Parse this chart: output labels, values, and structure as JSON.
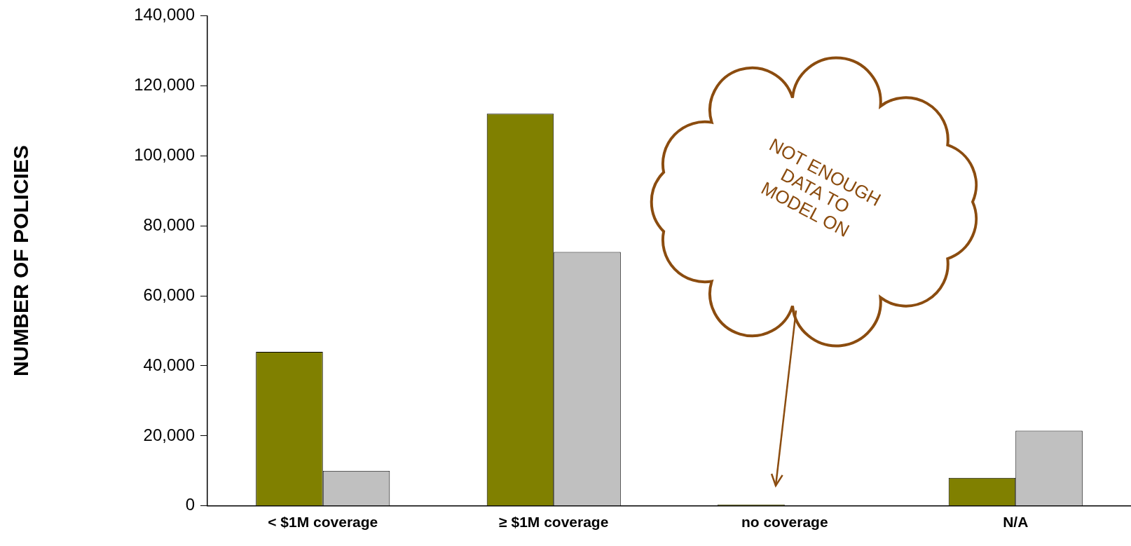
{
  "chart_data": {
    "type": "bar",
    "ylabel": "NUMBER OF POLICIES",
    "categories": [
      "< $1M coverage",
      "≥ $1M coverage",
      "no coverage",
      "N/A"
    ],
    "series": [
      {
        "color": "#808000",
        "values": [
          44000,
          112000,
          400,
          8000
        ]
      },
      {
        "color": "#c0c0c0",
        "values": [
          10000,
          72500,
          0,
          21500
        ]
      }
    ],
    "ylim": [
      0,
      140000
    ],
    "yticks": [
      {
        "value": 0,
        "label": "0"
      },
      {
        "value": 20000,
        "label": "20,000"
      },
      {
        "value": 40000,
        "label": "40,000"
      },
      {
        "value": 60000,
        "label": "60,000"
      },
      {
        "value": 80000,
        "label": "80,000"
      },
      {
        "value": 100000,
        "label": "100,000"
      },
      {
        "value": 120000,
        "label": "120,000"
      },
      {
        "value": 140000,
        "label": "140,000"
      }
    ],
    "grid": false,
    "legend": false,
    "annotations": [
      "NOT ENOUGH DATA TO MODEL ON"
    ]
  }
}
